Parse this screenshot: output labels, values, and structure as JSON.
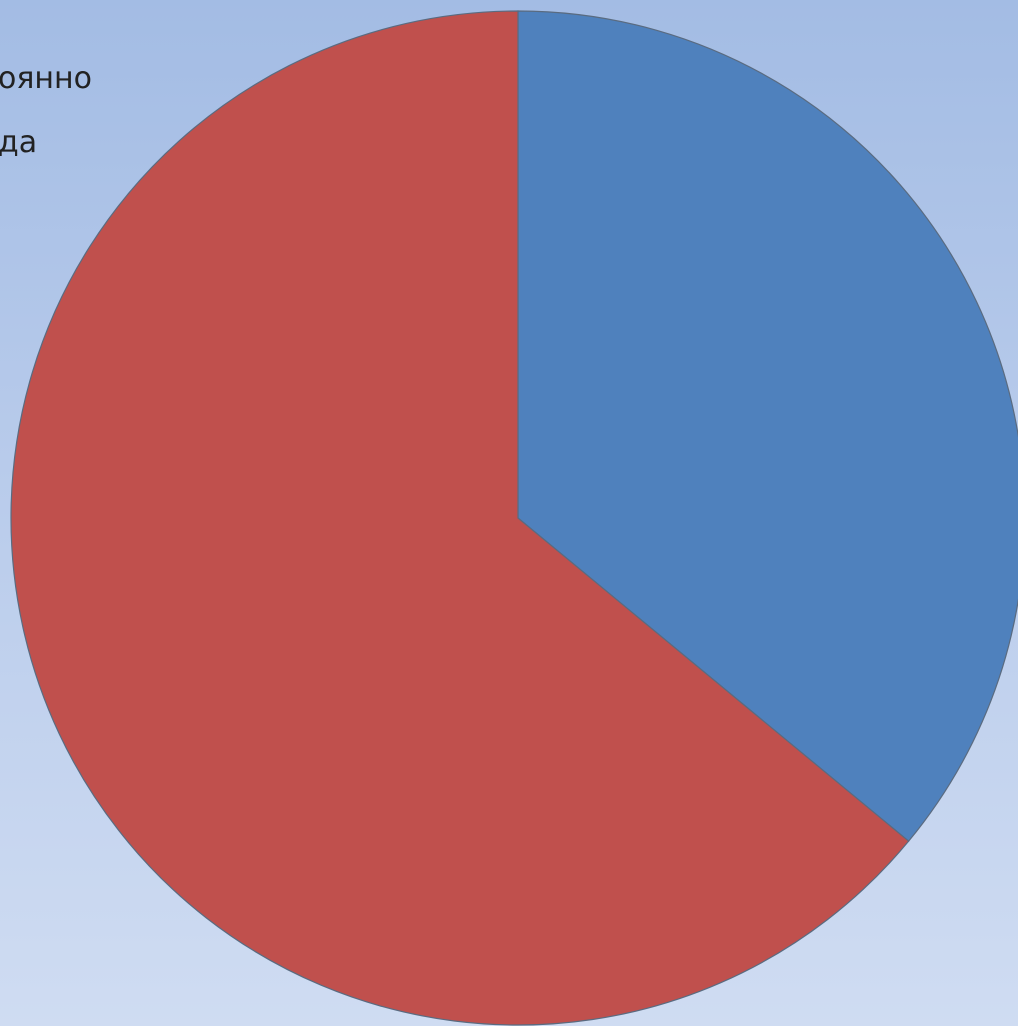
{
  "chart_data": {
    "type": "pie",
    "start_angle_deg": 0,
    "direction": "clockwise",
    "slices": [
      {
        "label": "",
        "value": 36,
        "color": "#4f81bd"
      },
      {
        "label": "",
        "value": 64,
        "color": "#c0504d"
      }
    ],
    "legend": {
      "placement": "top-left",
      "entries": [
        "оянно",
        "да"
      ]
    }
  }
}
